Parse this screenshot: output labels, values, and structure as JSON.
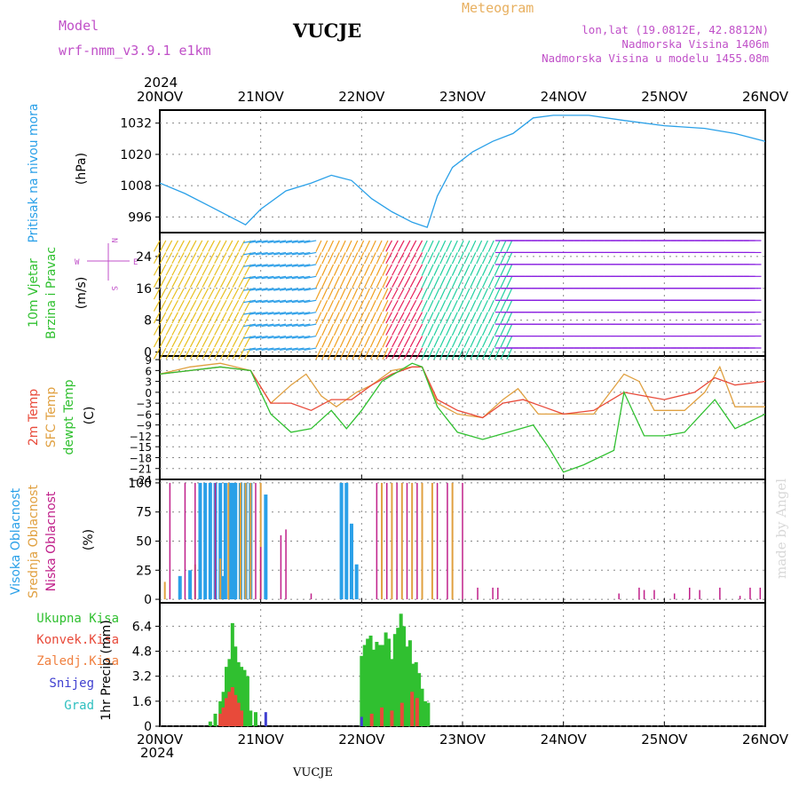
{
  "header": {
    "model_label": "Model",
    "model_name": "wrf-nmm_v3.9.1  e1km",
    "station": "VUCJE",
    "product": "Meteogram",
    "lonlat": "lon,lat (19.0812E, 42.8812N)",
    "altitude": "Nadmorska Visina 1406m",
    "model_altitude": "Nadmorska Visina u modelu 1455.08m",
    "footer_station": "VUCJE",
    "watermark": "made by Angel"
  },
  "time_axis": {
    "year": "2024",
    "ticks": [
      "20NOV",
      "21NOV",
      "22NOV",
      "23NOV",
      "24NOV",
      "25NOV",
      "26NOV"
    ],
    "range_days": [
      0,
      6
    ]
  },
  "colors": {
    "pressure": "#2aa0e8",
    "temp2m": "#e84a3a",
    "sfc": "#e0a040",
    "dewpt": "#30c030",
    "high_cloud": "#2aa0e8",
    "mid_cloud": "#e0a040",
    "low_cloud": "#c0208a",
    "precip_total": "#30c030",
    "precip_conv": "#e84a3a",
    "snow": "#4040d0",
    "wind_east": "#8a20e0",
    "label_purple": "#c050c8",
    "label_orange": "#e8b060"
  },
  "panels": {
    "pressure": {
      "ylabel": "Pritisak na nivou mora",
      "unit": "(hPa)",
      "yticks": [
        "1032",
        "1020",
        "1008",
        "996"
      ],
      "ylim": [
        990,
        1037
      ]
    },
    "wind": {
      "ylabel_1": "10m Vjetar",
      "ylabel_2": "Brzina i Pravac",
      "unit": "(m/s)",
      "yticks": [
        "24",
        "16",
        "8",
        "0"
      ],
      "ylim": [
        -1,
        30
      ],
      "compass_w": "W",
      "compass_e": "E",
      "compass_n": "N",
      "compass_s": "S"
    },
    "temp": {
      "ylabel_1": "2m Temp",
      "ylabel_2": "SFC Temp",
      "ylabel_3": "dewpt Temp",
      "unit": "(C)",
      "yticks": [
        "9",
        "6",
        "3",
        "0",
        "−3",
        "−6",
        "−9",
        "−12",
        "−15",
        "−18",
        "−21",
        "−24"
      ],
      "ylim": [
        -24,
        10
      ]
    },
    "cloud": {
      "ylabel_1": "Visoka Oblacnost",
      "ylabel_2": "Srednja Oblacnost",
      "ylabel_3": "Niska Oblacnost",
      "unit": "(%)",
      "yticks": [
        "100",
        "75",
        "50",
        "25",
        "0"
      ],
      "ylim": [
        -3,
        103
      ]
    },
    "precip": {
      "legend_total": "Ukupna Kisa",
      "legend_conv": "Konvek.Kisa",
      "legend_freezing": "Zaledj.Kisa",
      "legend_snow": "Snijeg",
      "legend_hail": "Grad",
      "ylabel": "1hr Precip (mm)",
      "yticks": [
        "6.4",
        "4.8",
        "3.2",
        "1.6",
        "0"
      ],
      "ylim": [
        0,
        7.9
      ]
    }
  },
  "chart_data": {
    "type": "line",
    "x_unit": "days since 20NOV 00UTC",
    "pressure": {
      "x": [
        0,
        0.25,
        0.5,
        0.75,
        0.85,
        1.0,
        1.25,
        1.5,
        1.7,
        1.9,
        2.1,
        2.3,
        2.5,
        2.65,
        2.75,
        2.9,
        3.1,
        3.3,
        3.5,
        3.7,
        3.9,
        4.25,
        4.6,
        5.0,
        5.4,
        5.7,
        6.0
      ],
      "y": [
        1009,
        1005,
        1000,
        995,
        993,
        999,
        1006,
        1009,
        1012,
        1010,
        1003,
        998,
        994,
        992,
        1004,
        1015,
        1021,
        1025,
        1028,
        1034,
        1035,
        1035,
        1033,
        1031,
        1030,
        1028,
        1025
      ]
    },
    "temp2m": {
      "x": [
        0,
        0.3,
        0.6,
        0.9,
        1.1,
        1.3,
        1.5,
        1.7,
        1.9,
        2.1,
        2.3,
        2.5,
        2.6,
        2.75,
        2.95,
        3.2,
        3.4,
        3.6,
        3.8,
        4.0,
        4.3,
        4.6,
        4.8,
        5.0,
        5.3,
        5.5,
        5.7,
        6.0
      ],
      "y": [
        5,
        6,
        7,
        6,
        -3,
        -3,
        -5,
        -2,
        -2,
        2,
        5,
        7,
        7,
        -2,
        -5,
        -7,
        -3,
        -2,
        -4,
        -6,
        -5,
        0,
        -1,
        -2,
        0,
        4,
        2,
        3
      ]
    },
    "sfc_temp": {
      "x": [
        0,
        0.3,
        0.6,
        0.9,
        1.1,
        1.3,
        1.45,
        1.6,
        1.75,
        1.95,
        2.1,
        2.3,
        2.5,
        2.6,
        2.75,
        2.95,
        3.2,
        3.4,
        3.55,
        3.75,
        4.0,
        4.3,
        4.6,
        4.75,
        4.9,
        5.2,
        5.4,
        5.55,
        5.7,
        6.0
      ],
      "y": [
        5,
        7,
        8,
        6,
        -3,
        2,
        5,
        -1,
        -4,
        0,
        2,
        6,
        7,
        7,
        -3,
        -6,
        -7,
        -2,
        1,
        -6,
        -6,
        -6,
        5,
        3,
        -5,
        -5,
        0,
        7,
        -4,
        -4
      ]
    },
    "dewpt_temp": {
      "x": [
        0,
        0.3,
        0.6,
        0.9,
        1.1,
        1.3,
        1.5,
        1.7,
        1.85,
        2.0,
        2.2,
        2.5,
        2.6,
        2.75,
        2.95,
        3.2,
        3.45,
        3.7,
        3.85,
        4.0,
        4.2,
        4.5,
        4.6,
        4.8,
        5.0,
        5.2,
        5.5,
        5.7,
        6.0
      ],
      "y": [
        5,
        6,
        7,
        6,
        -6,
        -11,
        -10,
        -5,
        -10,
        -5,
        3,
        8,
        7,
        -4,
        -11,
        -13,
        -11,
        -9,
        -15,
        -22,
        -20,
        -16,
        0,
        -12,
        -12,
        -11,
        -2,
        -10,
        -6
      ]
    },
    "cloud_high_bars": {
      "x": [
        0.2,
        0.3,
        0.4,
        0.45,
        0.5,
        0.55,
        0.6,
        0.62,
        0.65,
        0.7,
        0.72,
        0.75,
        0.8,
        0.85,
        0.9,
        1.05,
        1.8,
        1.85,
        1.9,
        1.95
      ],
      "y": [
        20,
        25,
        100,
        100,
        100,
        100,
        100,
        20,
        100,
        100,
        100,
        100,
        100,
        100,
        100,
        90,
        100,
        100,
        65,
        30
      ]
    },
    "cloud_mid_bars": {
      "x": [
        0.05,
        0.35,
        0.6,
        0.68,
        0.8,
        0.85,
        0.9,
        1.0,
        2.2,
        2.3,
        2.4,
        2.5,
        2.6,
        2.7,
        2.9
      ],
      "y": [
        15,
        30,
        35,
        100,
        100,
        100,
        100,
        100,
        100,
        100,
        100,
        100,
        100,
        100,
        100
      ]
    },
    "cloud_low_bars": {
      "x": [
        0.1,
        0.25,
        0.35,
        0.55,
        0.95,
        1.0,
        1.2,
        1.25,
        1.5,
        2.15,
        2.25,
        2.35,
        2.45,
        2.55,
        2.75,
        2.85,
        3.0,
        3.15,
        3.3,
        3.35,
        4.55,
        4.75,
        4.8,
        4.9,
        5.1,
        5.25,
        5.35,
        5.55,
        5.75,
        5.85,
        5.95
      ],
      "y": [
        100,
        100,
        100,
        100,
        100,
        45,
        55,
        60,
        5,
        100,
        100,
        100,
        100,
        100,
        100,
        100,
        100,
        10,
        10,
        10,
        5,
        10,
        8,
        8,
        5,
        10,
        8,
        10,
        3,
        10,
        10
      ]
    },
    "precip_total": {
      "x": [
        0.5,
        0.55,
        0.6,
        0.63,
        0.66,
        0.69,
        0.72,
        0.75,
        0.78,
        0.81,
        0.84,
        0.87,
        0.9,
        0.95,
        2.0,
        2.03,
        2.06,
        2.09,
        2.12,
        2.15,
        2.18,
        2.21,
        2.24,
        2.27,
        2.3,
        2.33,
        2.36,
        2.39,
        2.42,
        2.45,
        2.48,
        2.51,
        2.54,
        2.57,
        2.6,
        2.63,
        2.66
      ],
      "y": [
        0.3,
        0.8,
        1.6,
        2.2,
        3.8,
        4.3,
        6.6,
        5.1,
        4.1,
        3.8,
        3.6,
        3.2,
        1.0,
        0.9,
        4.5,
        5.2,
        5.6,
        5.8,
        4.9,
        5.4,
        5.2,
        5.2,
        6.0,
        5.6,
        4.3,
        5.9,
        6.3,
        7.2,
        6.4,
        5.1,
        5.5,
        4.0,
        4.1,
        3.4,
        2.4,
        1.6,
        1.5
      ]
    },
    "precip_conv": {
      "x": [
        0.6,
        0.63,
        0.66,
        0.69,
        0.72,
        0.75,
        0.78,
        0.81,
        2.1,
        2.2,
        2.3,
        2.4,
        2.5,
        2.55
      ],
      "y": [
        0.8,
        1.2,
        1.8,
        2.2,
        2.5,
        2.0,
        1.5,
        1.0,
        0.8,
        1.2,
        1.0,
        1.5,
        2.2,
        1.8
      ]
    },
    "snow": {
      "x": [
        1.05,
        2.0
      ],
      "y": [
        0.9,
        0.6
      ]
    }
  }
}
